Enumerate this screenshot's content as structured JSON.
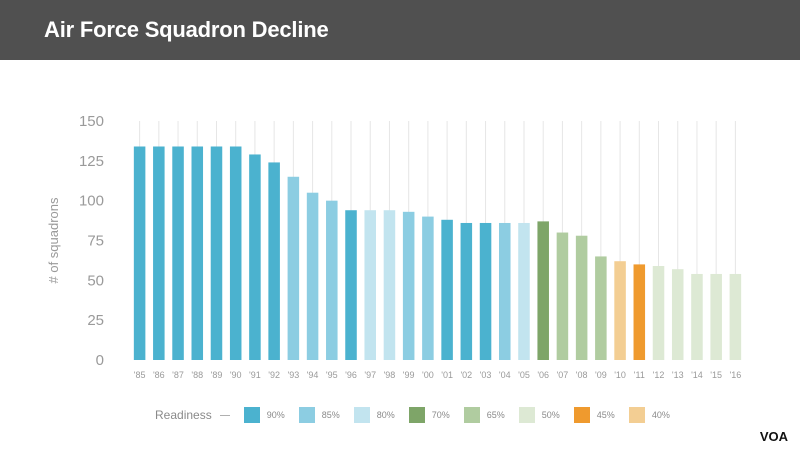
{
  "header": {
    "title": "Air Force Squadron Decline"
  },
  "watermark": "VOA",
  "colors": {
    "header_bg": "#505050",
    "r90": "#4bb2cf",
    "r85": "#8ccde2",
    "r80": "#c2e4ef",
    "r70": "#7ea568",
    "r65": "#b0cca0",
    "r50": "#dde9d4",
    "r45": "#ef9a2e",
    "r40": "#f3ce93"
  },
  "chart_data": {
    "type": "bar",
    "title": "Air Force Squadron Decline",
    "ylabel": "# of squadrons",
    "xlabel": "",
    "ylim": [
      0,
      150
    ],
    "yticks": [
      0,
      25,
      50,
      75,
      100,
      125,
      150
    ],
    "grid": "vertical lines behind each bar",
    "categories": [
      "'85",
      "'86",
      "'87",
      "'88",
      "'89",
      "'90",
      "'91",
      "'92",
      "'93",
      "'94",
      "'95",
      "'96",
      "'97",
      "'98",
      "'99",
      "'00",
      "'01",
      "'02",
      "'03",
      "'04",
      "'05",
      "'06",
      "'07",
      "'08",
      "'09",
      "'10",
      "'11",
      "'12",
      "'13",
      "'14",
      "'15",
      "'16"
    ],
    "values": [
      134,
      134,
      134,
      134,
      134,
      134,
      129,
      124,
      115,
      105,
      100,
      94,
      94,
      94,
      93,
      90,
      88,
      86,
      86,
      86,
      86,
      87,
      80,
      78,
      65,
      62,
      60,
      59,
      57,
      54,
      54,
      54
    ],
    "readiness": [
      "90%",
      "90%",
      "90%",
      "90%",
      "90%",
      "90%",
      "90%",
      "90%",
      "85%",
      "85%",
      "85%",
      "90%",
      "80%",
      "80%",
      "85%",
      "85%",
      "90%",
      "90%",
      "90%",
      "85%",
      "80%",
      "70%",
      "65%",
      "65%",
      "65%",
      "40%",
      "45%",
      "50%",
      "50%",
      "50%",
      "50%",
      "50%"
    ],
    "legend": {
      "title": "Readiness",
      "placement": "bottom",
      "items": [
        {
          "label": "90%",
          "color": "#4bb2cf"
        },
        {
          "label": "85%",
          "color": "#8ccde2"
        },
        {
          "label": "80%",
          "color": "#c2e4ef"
        },
        {
          "label": "70%",
          "color": "#7ea568"
        },
        {
          "label": "65%",
          "color": "#b0cca0"
        },
        {
          "label": "50%",
          "color": "#dde9d4"
        },
        {
          "label": "45%",
          "color": "#ef9a2e"
        },
        {
          "label": "40%",
          "color": "#f3ce93"
        }
      ]
    }
  }
}
